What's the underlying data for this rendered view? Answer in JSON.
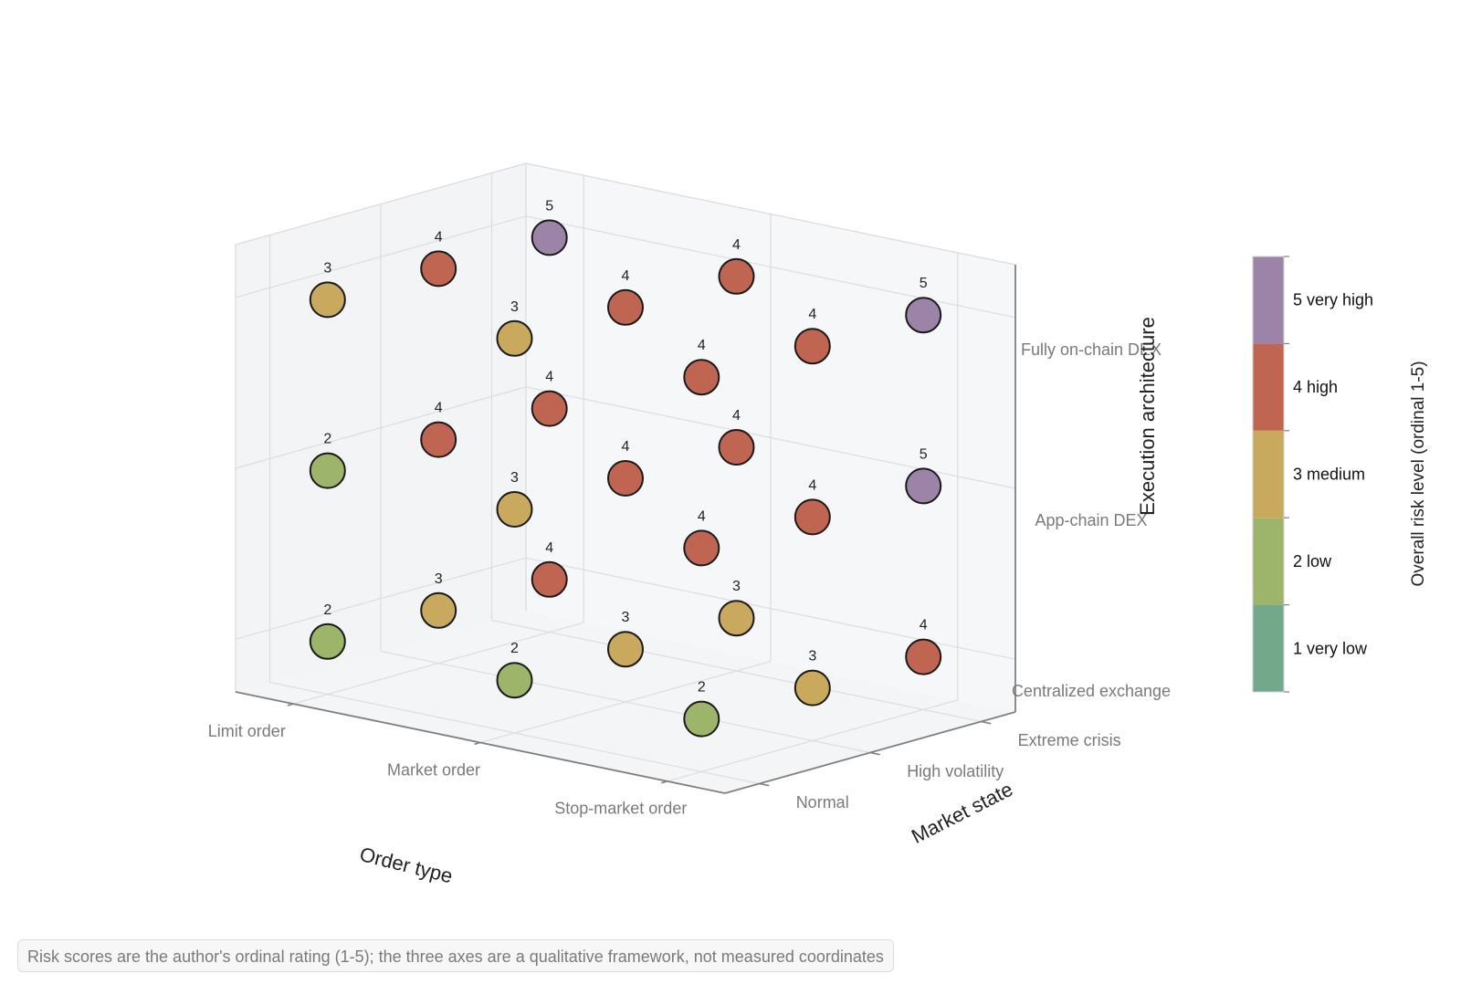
{
  "chart_data": {
    "type": "scatter3d",
    "axes": {
      "x": {
        "title": "Order type",
        "categories": [
          "Limit order",
          "Market order",
          "Stop-market order"
        ]
      },
      "y": {
        "title": "Market state",
        "categories": [
          "Normal",
          "High volatility",
          "Extreme crisis"
        ]
      },
      "z": {
        "title": "Execution architecture",
        "categories": [
          "Centralized exchange",
          "App-chain DEX",
          "Fully on-chain DEX"
        ]
      }
    },
    "points": [
      {
        "x": "Limit order",
        "y": "Normal",
        "z": "Centralized exchange",
        "risk": 2
      },
      {
        "x": "Limit order",
        "y": "High volatility",
        "z": "Centralized exchange",
        "risk": 3
      },
      {
        "x": "Limit order",
        "y": "Extreme crisis",
        "z": "Centralized exchange",
        "risk": 4
      },
      {
        "x": "Limit order",
        "y": "Normal",
        "z": "App-chain DEX",
        "risk": 2
      },
      {
        "x": "Limit order",
        "y": "High volatility",
        "z": "App-chain DEX",
        "risk": 4
      },
      {
        "x": "Limit order",
        "y": "Extreme crisis",
        "z": "App-chain DEX",
        "risk": 4
      },
      {
        "x": "Limit order",
        "y": "Normal",
        "z": "Fully on-chain DEX",
        "risk": 3
      },
      {
        "x": "Limit order",
        "y": "High volatility",
        "z": "Fully on-chain DEX",
        "risk": 4
      },
      {
        "x": "Limit order",
        "y": "Extreme crisis",
        "z": "Fully on-chain DEX",
        "risk": 5
      },
      {
        "x": "Market order",
        "y": "Normal",
        "z": "Centralized exchange",
        "risk": 2
      },
      {
        "x": "Market order",
        "y": "High volatility",
        "z": "Centralized exchange",
        "risk": 3
      },
      {
        "x": "Market order",
        "y": "Extreme crisis",
        "z": "Centralized exchange",
        "risk": 3
      },
      {
        "x": "Market order",
        "y": "Normal",
        "z": "App-chain DEX",
        "risk": 3
      },
      {
        "x": "Market order",
        "y": "High volatility",
        "z": "App-chain DEX",
        "risk": 4
      },
      {
        "x": "Market order",
        "y": "Extreme crisis",
        "z": "App-chain DEX",
        "risk": 4
      },
      {
        "x": "Market order",
        "y": "Normal",
        "z": "Fully on-chain DEX",
        "risk": 3
      },
      {
        "x": "Market order",
        "y": "High volatility",
        "z": "Fully on-chain DEX",
        "risk": 4
      },
      {
        "x": "Market order",
        "y": "Extreme crisis",
        "z": "Fully on-chain DEX",
        "risk": 4
      },
      {
        "x": "Stop-market order",
        "y": "Normal",
        "z": "Centralized exchange",
        "risk": 2
      },
      {
        "x": "Stop-market order",
        "y": "High volatility",
        "z": "Centralized exchange",
        "risk": 3
      },
      {
        "x": "Stop-market order",
        "y": "Extreme crisis",
        "z": "Centralized exchange",
        "risk": 4
      },
      {
        "x": "Stop-market order",
        "y": "Normal",
        "z": "App-chain DEX",
        "risk": 4
      },
      {
        "x": "Stop-market order",
        "y": "High volatility",
        "z": "App-chain DEX",
        "risk": 4
      },
      {
        "x": "Stop-market order",
        "y": "Extreme crisis",
        "z": "App-chain DEX",
        "risk": 5
      },
      {
        "x": "Stop-market order",
        "y": "Normal",
        "z": "Fully on-chain DEX",
        "risk": 4
      },
      {
        "x": "Stop-market order",
        "y": "High volatility",
        "z": "Fully on-chain DEX",
        "risk": 4
      },
      {
        "x": "Stop-market order",
        "y": "Extreme crisis",
        "z": "Fully on-chain DEX",
        "risk": 5
      }
    ],
    "colorbar": {
      "title": "Overall risk level (ordinal 1-5)",
      "levels": [
        {
          "value": 1,
          "label": "1 very low",
          "color": "#73a98a"
        },
        {
          "value": 2,
          "label": "2 low",
          "color": "#9db56b"
        },
        {
          "value": 3,
          "label": "3 medium",
          "color": "#c9a95e"
        },
        {
          "value": 4,
          "label": "4 high",
          "color": "#c16553"
        },
        {
          "value": 5,
          "label": "5 very high",
          "color": "#9c84a8"
        }
      ]
    },
    "grid": true,
    "legend_position": "right"
  },
  "caption": "Risk scores are the author's ordinal rating (1-5); the three axes are a qualitative framework, not measured coordinates"
}
